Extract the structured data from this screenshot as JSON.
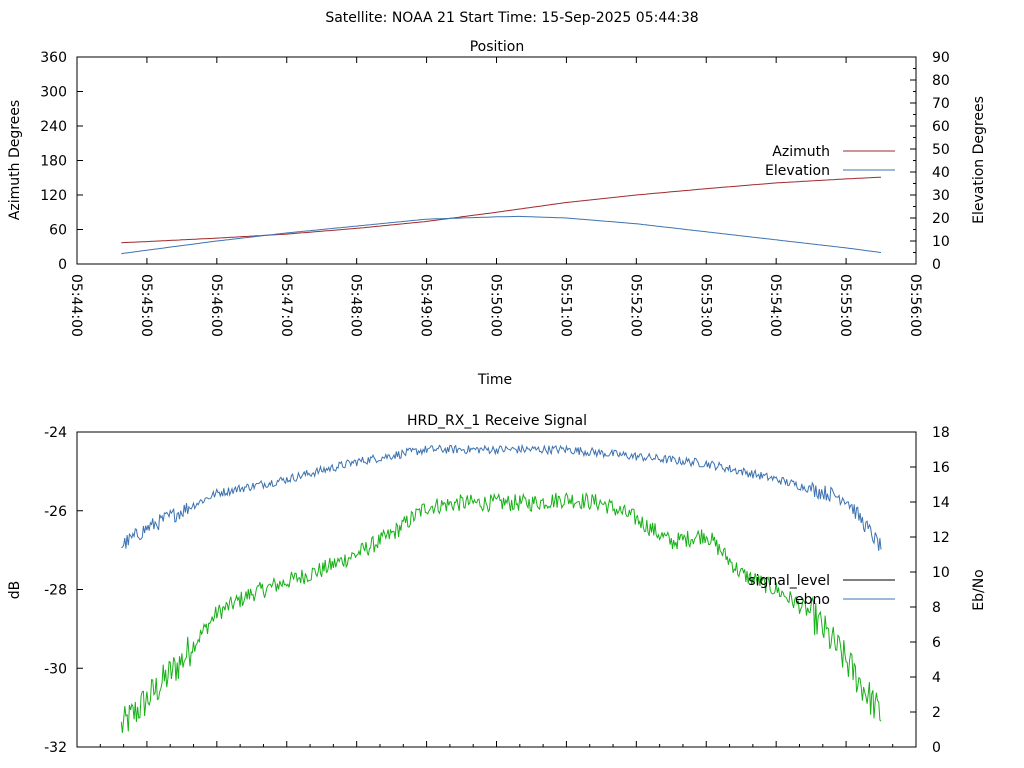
{
  "header": {
    "title": "Satellite: NOAA 21    Start Time: 15-Sep-2025 05:44:38"
  },
  "colors": {
    "azimuth": "#a0282c",
    "elevation": "#3d73b0",
    "signal_level": "#000000",
    "ebno": "#3d73b0",
    "green_trace": "#18b018"
  },
  "chart_data": [
    {
      "type": "line",
      "title": "Position",
      "xlabel": "Time",
      "ylabel": "Azimuth Degrees",
      "y2label": "Elevation Degrees",
      "xlim": [
        "05:44:00",
        "05:56:00"
      ],
      "ylim": [
        0,
        360
      ],
      "y2lim": [
        0,
        90
      ],
      "x_ticks": [
        "05:44:00",
        "05:45:00",
        "05:46:00",
        "05:47:00",
        "05:48:00",
        "05:49:00",
        "05:50:00",
        "05:51:00",
        "05:52:00",
        "05:53:00",
        "05:54:00",
        "05:55:00",
        "05:56:00"
      ],
      "y_ticks": [
        "0",
        "60",
        "120",
        "180",
        "240",
        "300",
        "360"
      ],
      "y2_ticks": [
        "0",
        "10",
        "20",
        "30",
        "40",
        "50",
        "60",
        "70",
        "80",
        "90"
      ],
      "legend_position": "right",
      "grid": false,
      "series": [
        {
          "name": "Azimuth",
          "axis": "left",
          "x": [
            "05:44:38",
            "05:45:00",
            "05:46:00",
            "05:47:00",
            "05:48:00",
            "05:49:00",
            "05:50:00",
            "05:51:00",
            "05:52:00",
            "05:53:00",
            "05:54:00",
            "05:55:00",
            "05:55:30"
          ],
          "y": [
            37,
            39,
            45,
            52,
            62,
            74,
            90,
            107,
            120,
            131,
            141,
            148,
            151
          ]
        },
        {
          "name": "Elevation",
          "axis": "right",
          "x": [
            "05:44:38",
            "05:45:00",
            "05:46:00",
            "05:47:00",
            "05:48:00",
            "05:49:00",
            "05:50:00",
            "05:50:20",
            "05:51:00",
            "05:52:00",
            "05:53:00",
            "05:54:00",
            "05:55:00",
            "05:55:30"
          ],
          "y": [
            4.5,
            6,
            10,
            13.5,
            16.5,
            19.5,
            20.5,
            20.7,
            20,
            17.5,
            14,
            10.5,
            7,
            5
          ]
        }
      ]
    },
    {
      "type": "line",
      "title": "HRD_RX_1 Receive Signal",
      "ylabel": "dB",
      "y2label": "Eb/No",
      "ylim": [
        -32,
        -24
      ],
      "y2lim": [
        0,
        18
      ],
      "y_ticks": [
        "-32",
        "-30",
        "-28",
        "-26",
        "-24"
      ],
      "y2_ticks": [
        "0",
        "2",
        "4",
        "6",
        "8",
        "10",
        "12",
        "14",
        "16",
        "18"
      ],
      "legend_position": "right",
      "grid": false,
      "series": [
        {
          "name": "signal_level",
          "axis": "left",
          "x": [],
          "y": []
        },
        {
          "name": "ebno",
          "axis": "right",
          "x": [
            "05:44:38",
            "05:45:00",
            "05:46:00",
            "05:47:00",
            "05:48:00",
            "05:49:00",
            "05:50:00",
            "05:51:00",
            "05:52:00",
            "05:53:00",
            "05:54:00",
            "05:55:00",
            "05:55:30"
          ],
          "y": [
            11.5,
            12.5,
            14.5,
            15.3,
            16.3,
            17.0,
            17.0,
            17.0,
            16.6,
            16.2,
            15.3,
            14.2,
            11.4
          ]
        },
        {
          "axis": "left",
          "x": [
            "05:44:38",
            "05:45:00",
            "05:45:30",
            "05:46:00",
            "05:46:30",
            "05:47:00",
            "05:47:30",
            "05:48:00",
            "05:48:30",
            "05:49:00",
            "05:49:30",
            "05:50:00",
            "05:50:30",
            "05:51:00",
            "05:51:30",
            "05:52:00",
            "05:52:30",
            "05:53:00",
            "05:53:30",
            "05:54:00",
            "05:54:30",
            "05:55:00",
            "05:55:30"
          ],
          "y": [
            -31.5,
            -30.8,
            -29.8,
            -28.6,
            -28.1,
            -27.8,
            -27.5,
            -27.1,
            -26.6,
            -25.9,
            -25.8,
            -25.8,
            -25.8,
            -25.7,
            -25.8,
            -26.2,
            -26.8,
            -26.6,
            -27.6,
            -28.0,
            -28.6,
            -29.8,
            -31.2
          ]
        }
      ]
    }
  ]
}
